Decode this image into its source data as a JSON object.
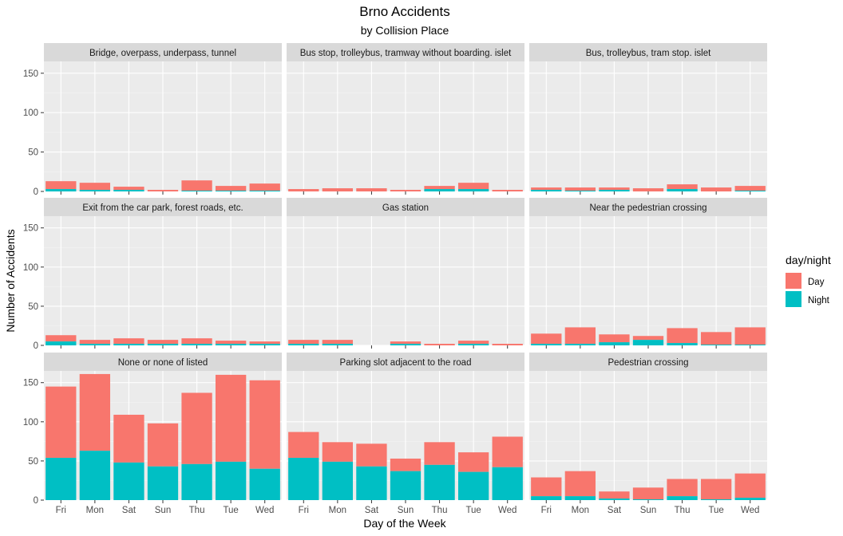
{
  "chart_data": {
    "type": "bar",
    "stacked": true,
    "title": "Brno Accidents",
    "subtitle": "by Collision Place",
    "xlabel": "Day of the Week",
    "ylabel": "Number of Accidents",
    "ylim": [
      0,
      165
    ],
    "yticks": [
      0,
      50,
      100,
      150
    ],
    "grid": true,
    "legend": {
      "title": "day/night",
      "position": "right",
      "entries": [
        {
          "name": "Day",
          "color": "#F8766D"
        },
        {
          "name": "Night",
          "color": "#00BFC4"
        }
      ]
    },
    "categories": [
      "Fri",
      "Mon",
      "Sat",
      "Sun",
      "Thu",
      "Tue",
      "Wed"
    ],
    "facets": [
      {
        "name": "Bridge, overpass, underpass, tunnel",
        "series": [
          {
            "name": "Night",
            "values": [
              3,
              2,
              2,
              0,
              1,
              1,
              1
            ]
          },
          {
            "name": "Day",
            "values": [
              10,
              9,
              4,
              2,
              13,
              6,
              9
            ]
          }
        ]
      },
      {
        "name": "Bus stop, trolleybus, tramway without boarding. islet",
        "series": [
          {
            "name": "Night",
            "values": [
              0,
              0,
              0,
              0,
              3,
              3,
              0
            ]
          },
          {
            "name": "Day",
            "values": [
              3,
              4,
              4,
              2,
              4,
              8,
              2
            ]
          }
        ]
      },
      {
        "name": "Bus, trolleybus, tram stop. islet",
        "series": [
          {
            "name": "Night",
            "values": [
              2,
              1,
              2,
              0,
              3,
              0,
              1
            ]
          },
          {
            "name": "Day",
            "values": [
              3,
              4,
              3,
              4,
              6,
              5,
              6
            ]
          }
        ]
      },
      {
        "name": "Exit from the car park, forest roads, etc.",
        "series": [
          {
            "name": "Night",
            "values": [
              5,
              2,
              2,
              2,
              2,
              2,
              2
            ]
          },
          {
            "name": "Day",
            "values": [
              8,
              5,
              7,
              5,
              7,
              4,
              3
            ]
          }
        ]
      },
      {
        "name": "Gas station",
        "series": [
          {
            "name": "Night",
            "values": [
              2,
              2,
              0,
              2,
              0,
              2,
              0
            ]
          },
          {
            "name": "Day",
            "values": [
              5,
              5,
              0,
              3,
              2,
              4,
              2
            ]
          }
        ]
      },
      {
        "name": "Near the pedestrian crossing",
        "series": [
          {
            "name": "Night",
            "values": [
              2,
              2,
              4,
              7,
              3,
              1,
              1
            ]
          },
          {
            "name": "Day",
            "values": [
              13,
              21,
              10,
              5,
              19,
              16,
              22
            ]
          }
        ]
      },
      {
        "name": "None or none of listed",
        "series": [
          {
            "name": "Night",
            "values": [
              54,
              63,
              48,
              43,
              46,
              49,
              40
            ]
          },
          {
            "name": "Day",
            "values": [
              91,
              98,
              61,
              55,
              91,
              111,
              113
            ]
          }
        ]
      },
      {
        "name": "Parking slot adjacent to the road",
        "series": [
          {
            "name": "Night",
            "values": [
              54,
              49,
              43,
              37,
              45,
              36,
              42
            ]
          },
          {
            "name": "Day",
            "values": [
              33,
              25,
              29,
              16,
              29,
              25,
              39
            ]
          }
        ]
      },
      {
        "name": "Pedestrian crossing",
        "series": [
          {
            "name": "Night",
            "values": [
              5,
              5,
              2,
              1,
              5,
              1,
              3
            ]
          },
          {
            "name": "Day",
            "values": [
              24,
              32,
              9,
              15,
              22,
              26,
              31
            ]
          }
        ]
      }
    ]
  }
}
